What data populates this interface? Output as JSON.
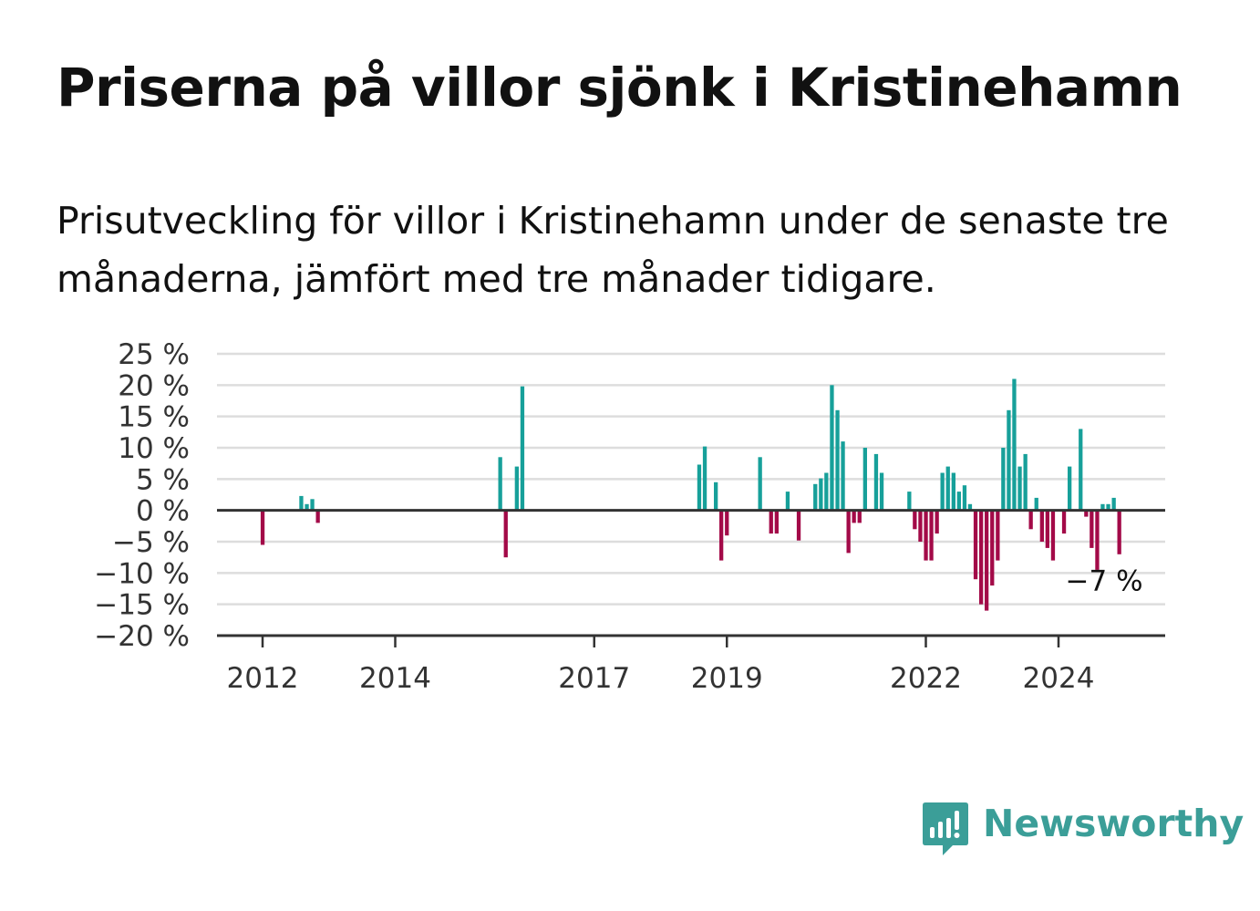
{
  "header": {
    "title": "Priserna på villor sjönk i Kristinehamn",
    "subtitle": "Prisutveckling för villor i Kristinehamn under de senaste tre månaderna, jämfört med tre månader tidigare."
  },
  "branding": {
    "logo_text": "Newsworthy",
    "logo_color": "#3b9e98"
  },
  "colors": {
    "positive": "#17a09a",
    "negative": "#a30a48",
    "grid": "#dddddd",
    "axis": "#333333"
  },
  "chart_data": {
    "type": "bar",
    "ylim": [
      -20,
      25
    ],
    "yticks": [
      {
        "value": 25,
        "label": "25 %"
      },
      {
        "value": 20,
        "label": "20 %"
      },
      {
        "value": 15,
        "label": "15 %"
      },
      {
        "value": 10,
        "label": "10 %"
      },
      {
        "value": 5,
        "label": "5 %"
      },
      {
        "value": 0,
        "label": "0 %"
      },
      {
        "value": -5,
        "label": "−5 %"
      },
      {
        "value": -10,
        "label": "−10 %"
      },
      {
        "value": -15,
        "label": "−15 %"
      },
      {
        "value": -20,
        "label": "−20 %"
      }
    ],
    "xticks": [
      {
        "date": "2012-01",
        "label": "2012"
      },
      {
        "date": "2014-01",
        "label": "2014"
      },
      {
        "date": "2017-01",
        "label": "2017"
      },
      {
        "date": "2019-01",
        "label": "2019"
      },
      {
        "date": "2022-01",
        "label": "2022"
      },
      {
        "date": "2024-01",
        "label": "2024"
      }
    ],
    "xlim": [
      "2011-04",
      "2025-08"
    ],
    "grid": true,
    "annotation": {
      "date": "2024-10",
      "value": -7,
      "label": "−7 %"
    },
    "series": [
      {
        "values": [
          {
            "date": "2012-01",
            "value": -5.5
          },
          {
            "date": "2012-08",
            "value": 2.3
          },
          {
            "date": "2012-09",
            "value": 1
          },
          {
            "date": "2012-10",
            "value": 1.8
          },
          {
            "date": "2012-11",
            "value": -2
          },
          {
            "date": "2015-08",
            "value": 8.5
          },
          {
            "date": "2015-09",
            "value": -7.5
          },
          {
            "date": "2015-11",
            "value": 7
          },
          {
            "date": "2015-12",
            "value": 19.8
          },
          {
            "date": "2018-08",
            "value": 7.3
          },
          {
            "date": "2018-09",
            "value": 10.2
          },
          {
            "date": "2018-11",
            "value": 4.5
          },
          {
            "date": "2018-12",
            "value": -8
          },
          {
            "date": "2019-01",
            "value": -4
          },
          {
            "date": "2019-07",
            "value": 8.5
          },
          {
            "date": "2019-09",
            "value": -3.7
          },
          {
            "date": "2019-10",
            "value": -3.7
          },
          {
            "date": "2019-12",
            "value": 3
          },
          {
            "date": "2020-02",
            "value": -4.8
          },
          {
            "date": "2020-05",
            "value": 4.2
          },
          {
            "date": "2020-06",
            "value": 5.1
          },
          {
            "date": "2020-07",
            "value": 6
          },
          {
            "date": "2020-08",
            "value": 20
          },
          {
            "date": "2020-09",
            "value": 16
          },
          {
            "date": "2020-10",
            "value": 11
          },
          {
            "date": "2020-11",
            "value": -6.8
          },
          {
            "date": "2020-12",
            "value": -2
          },
          {
            "date": "2021-01",
            "value": -2
          },
          {
            "date": "2021-02",
            "value": 10
          },
          {
            "date": "2021-04",
            "value": 9
          },
          {
            "date": "2021-05",
            "value": 6
          },
          {
            "date": "2021-10",
            "value": 3
          },
          {
            "date": "2021-11",
            "value": -3
          },
          {
            "date": "2021-12",
            "value": -5
          },
          {
            "date": "2022-01",
            "value": -8
          },
          {
            "date": "2022-02",
            "value": -8
          },
          {
            "date": "2022-03",
            "value": -3.7
          },
          {
            "date": "2022-04",
            "value": 6
          },
          {
            "date": "2022-05",
            "value": 7
          },
          {
            "date": "2022-06",
            "value": 6
          },
          {
            "date": "2022-07",
            "value": 3
          },
          {
            "date": "2022-08",
            "value": 4
          },
          {
            "date": "2022-09",
            "value": 1
          },
          {
            "date": "2022-10",
            "value": -11
          },
          {
            "date": "2022-11",
            "value": -15
          },
          {
            "date": "2022-12",
            "value": -16
          },
          {
            "date": "2023-01",
            "value": -12
          },
          {
            "date": "2023-02",
            "value": -8
          },
          {
            "date": "2023-03",
            "value": 10
          },
          {
            "date": "2023-04",
            "value": 16
          },
          {
            "date": "2023-05",
            "value": 21
          },
          {
            "date": "2023-06",
            "value": 7
          },
          {
            "date": "2023-07",
            "value": 9
          },
          {
            "date": "2023-08",
            "value": -3
          },
          {
            "date": "2023-09",
            "value": 2
          },
          {
            "date": "2023-10",
            "value": -5
          },
          {
            "date": "2023-11",
            "value": -6
          },
          {
            "date": "2023-12",
            "value": -8
          },
          {
            "date": "2024-02",
            "value": -3.7
          },
          {
            "date": "2024-03",
            "value": 7
          },
          {
            "date": "2024-05",
            "value": 13
          },
          {
            "date": "2024-06",
            "value": -1
          },
          {
            "date": "2024-07",
            "value": -6
          },
          {
            "date": "2024-08",
            "value": -9.5
          },
          {
            "date": "2024-09",
            "value": 1
          },
          {
            "date": "2024-10",
            "value": 1
          },
          {
            "date": "2024-11",
            "value": 2
          },
          {
            "date": "2024-12",
            "value": -7
          }
        ]
      }
    ]
  }
}
